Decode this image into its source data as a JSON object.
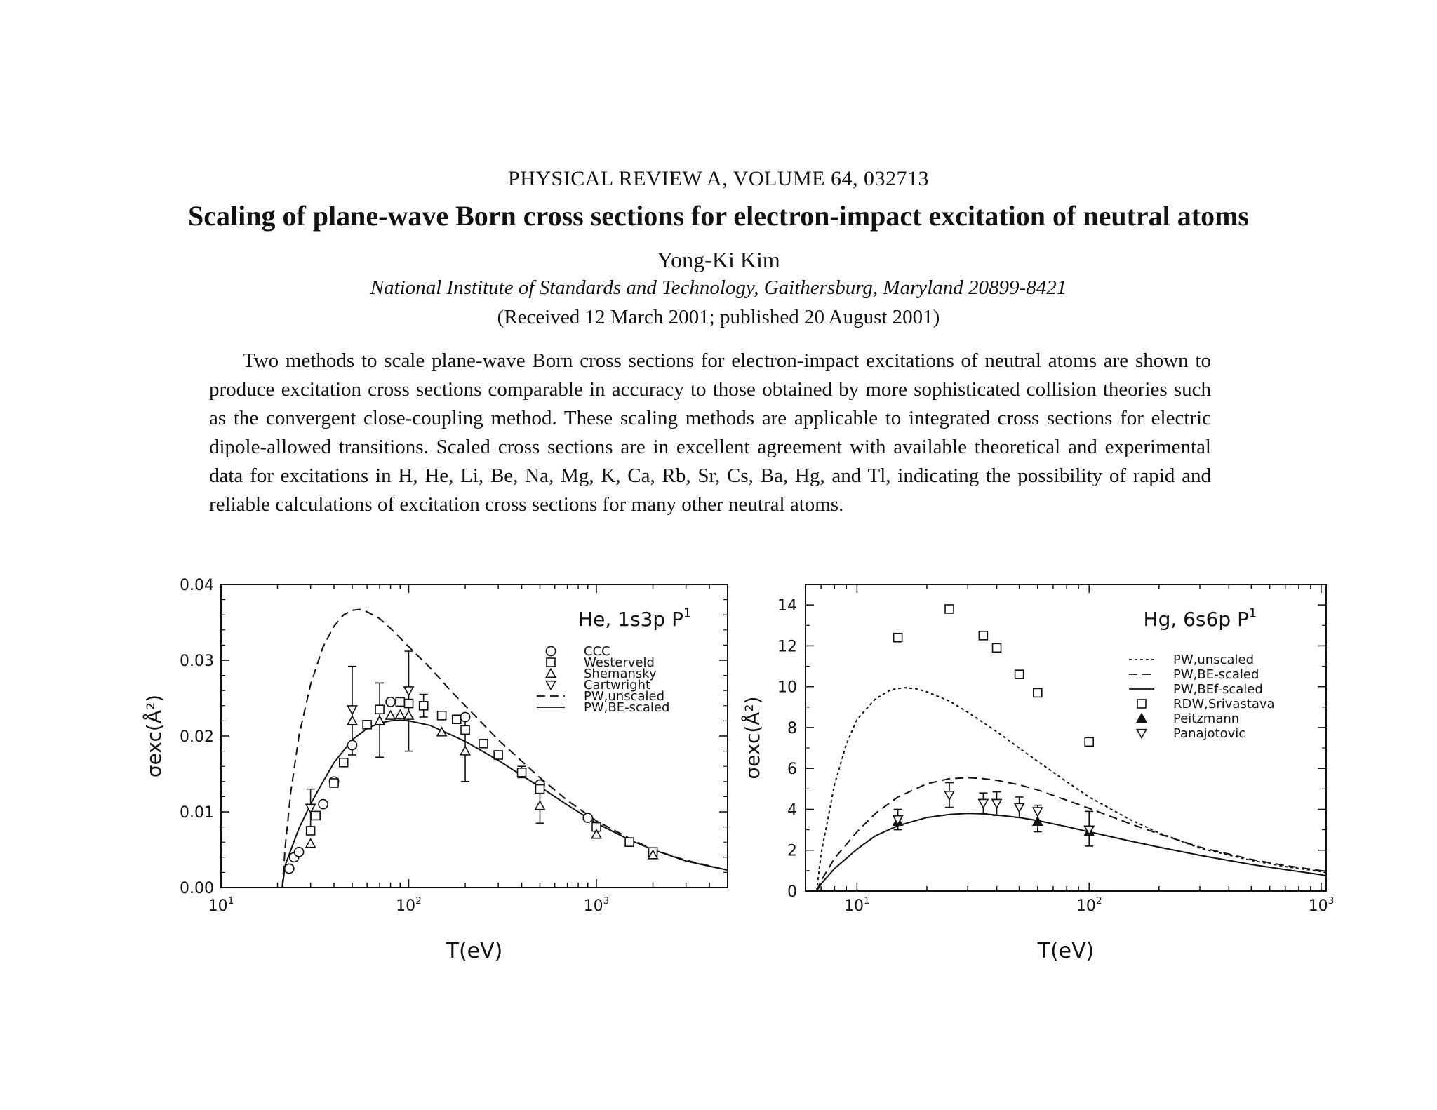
{
  "header": {
    "journal": "PHYSICAL REVIEW A, VOLUME 64, 032713",
    "title": "Scaling of plane-wave Born cross sections for electron-impact excitation of neutral atoms",
    "author": "Yong-Ki Kim",
    "affiliation": "National Institute of Standards and Technology, Gaithersburg, Maryland 20899-8421",
    "received": "(Received 12 March 2001; published 20 August 2001)"
  },
  "abstract": "Two methods to scale plane-wave Born cross sections for electron-impact excitations of neutral atoms are shown to produce excitation cross sections comparable in accuracy to those obtained by more sophisticated collision theories such as the convergent close-coupling method. These scaling methods are applicable to integrated cross sections for electric dipole-allowed transitions. Scaled cross sections are in excellent agreement with available theoretical and experimental data for excitations in H, He, Li, Be, Na, Mg, K, Ca, Rb, Sr, Cs, Ba, Hg, and Tl, indicating the possibility of rapid and reliable calculations of excitation cross sections for many other neutral atoms.",
  "chart_data": [
    {
      "type": "line",
      "annotation": "He, 1s3p ¹P",
      "xlabel": "T(eV)",
      "ylabel": "σexc(Å²)",
      "xscale": "log",
      "xlim": [
        10,
        5000
      ],
      "ylim": [
        0,
        0.04
      ],
      "xticks": [
        {
          "v": 10,
          "label": "10¹"
        },
        {
          "v": 100,
          "label": "10²"
        },
        {
          "v": 1000,
          "label": "10³"
        }
      ],
      "yticks": [
        "0.00",
        "0.01",
        "0.02",
        "0.03",
        "0.04"
      ],
      "legend_position": "upper-right",
      "series": [
        {
          "name": "CCC",
          "kind": "points",
          "marker": "circle",
          "points": [
            [
              23.1,
              0.0025
            ],
            [
              24.5,
              0.004
            ],
            [
              26,
              0.0047
            ],
            [
              35,
              0.011
            ],
            [
              40,
              0.014
            ],
            [
              50,
              0.0188
            ],
            [
              80,
              0.0245
            ],
            [
              200,
              0.0225
            ],
            [
              500,
              0.0136
            ],
            [
              900,
              0.0092
            ]
          ]
        },
        {
          "name": "Westerveld",
          "kind": "points",
          "marker": "square",
          "points": [
            [
              30,
              0.0075
            ],
            [
              32,
              0.0095
            ],
            [
              40,
              0.0138
            ],
            [
              45,
              0.0165
            ],
            [
              60,
              0.0215
            ],
            [
              70,
              0.0235
            ],
            [
              90,
              0.0245
            ],
            [
              100,
              0.0243
            ],
            [
              120,
              0.024
            ],
            [
              150,
              0.0227
            ],
            [
              180,
              0.0222
            ],
            [
              200,
              0.0208
            ],
            [
              250,
              0.019
            ],
            [
              300,
              0.0175
            ],
            [
              400,
              0.0152
            ],
            [
              500,
              0.013
            ],
            [
              1000,
              0.008
            ],
            [
              1500,
              0.006
            ],
            [
              2000,
              0.0047
            ]
          ]
        },
        {
          "name": "Shemansky",
          "kind": "points",
          "marker": "triangle-up",
          "points": [
            [
              30,
              0.0058
            ],
            [
              50,
              0.022
            ],
            [
              70,
              0.022
            ],
            [
              80,
              0.0227
            ],
            [
              90,
              0.0228
            ],
            [
              100,
              0.0227
            ],
            [
              150,
              0.0205
            ],
            [
              200,
              0.018
            ],
            [
              500,
              0.0108
            ],
            [
              1000,
              0.007
            ],
            [
              2000,
              0.0043
            ]
          ]
        },
        {
          "name": "Cartwright",
          "kind": "points",
          "marker": "triangle-down",
          "points": [
            [
              30,
              0.0105
            ],
            [
              50,
              0.0235
            ],
            [
              100,
              0.026
            ]
          ]
        },
        {
          "name": "PW,unscaled",
          "kind": "line",
          "dash": "dashed",
          "points": [
            [
              21.2,
              0.0
            ],
            [
              22,
              0.0055
            ],
            [
              23.5,
              0.0125
            ],
            [
              26,
              0.02
            ],
            [
              30,
              0.0268
            ],
            [
              35,
              0.0318
            ],
            [
              40,
              0.0345
            ],
            [
              45,
              0.036
            ],
            [
              50,
              0.0366
            ],
            [
              55,
              0.0367
            ],
            [
              60,
              0.0364
            ],
            [
              70,
              0.0355
            ],
            [
              80,
              0.0342
            ],
            [
              100,
              0.0318
            ],
            [
              130,
              0.029
            ],
            [
              170,
              0.0258
            ],
            [
              200,
              0.024
            ],
            [
              300,
              0.0195
            ],
            [
              500,
              0.0145
            ],
            [
              700,
              0.0115
            ],
            [
              1000,
              0.0088
            ],
            [
              1500,
              0.0065
            ],
            [
              2000,
              0.005
            ],
            [
              3000,
              0.0036
            ],
            [
              5000,
              0.0023
            ]
          ]
        },
        {
          "name": "PW,BE-scaled",
          "kind": "line",
          "dash": "solid",
          "points": [
            [
              21.2,
              0.0
            ],
            [
              22,
              0.003
            ],
            [
              24,
              0.0055
            ],
            [
              26,
              0.0078
            ],
            [
              30,
              0.011
            ],
            [
              35,
              0.014
            ],
            [
              40,
              0.0165
            ],
            [
              50,
              0.0195
            ],
            [
              60,
              0.021
            ],
            [
              70,
              0.0217
            ],
            [
              80,
              0.022
            ],
            [
              90,
              0.0221
            ],
            [
              100,
              0.022
            ],
            [
              130,
              0.0214
            ],
            [
              170,
              0.0201
            ],
            [
              200,
              0.0193
            ],
            [
              300,
              0.0168
            ],
            [
              400,
              0.0148
            ],
            [
              500,
              0.0133
            ],
            [
              700,
              0.0109
            ],
            [
              1000,
              0.0085
            ],
            [
              1500,
              0.0063
            ],
            [
              2000,
              0.005
            ],
            [
              3000,
              0.0035
            ],
            [
              5000,
              0.0023
            ]
          ]
        }
      ],
      "error_bars": [
        {
          "x": 30,
          "y": 0.0105,
          "lo": 0.008,
          "hi": 0.013
        },
        {
          "x": 50,
          "y": 0.0235,
          "lo": 0.0175,
          "hi": 0.0292
        },
        {
          "x": 70,
          "y": 0.022,
          "lo": 0.0172,
          "hi": 0.027
        },
        {
          "x": 100,
          "y": 0.025,
          "lo": 0.018,
          "hi": 0.0312
        },
        {
          "x": 120,
          "y": 0.024,
          "lo": 0.0225,
          "hi": 0.0255
        },
        {
          "x": 200,
          "y": 0.018,
          "lo": 0.014,
          "hi": 0.022
        },
        {
          "x": 400,
          "y": 0.0152,
          "lo": 0.0145,
          "hi": 0.016
        },
        {
          "x": 500,
          "y": 0.011,
          "lo": 0.0085,
          "hi": 0.0135
        }
      ]
    },
    {
      "type": "line",
      "annotation": "Hg, 6s6p ¹P",
      "xlabel": "T(eV)",
      "ylabel": "σexc(Å²)",
      "xscale": "log",
      "xlim": [
        6,
        1050
      ],
      "ylim": [
        0,
        15
      ],
      "xticks": [
        {
          "v": 10,
          "label": "10¹"
        },
        {
          "v": 100,
          "label": "10²"
        },
        {
          "v": 1000,
          "label": "10³"
        }
      ],
      "yticks": [
        "0",
        "2",
        "4",
        "6",
        "8",
        "10",
        "12",
        "14"
      ],
      "legend_position": "upper-right",
      "series": [
        {
          "name": "PW,unscaled",
          "kind": "line",
          "dash": "dotted",
          "points": [
            [
              6.7,
              0.0
            ],
            [
              7,
              1.8
            ],
            [
              8,
              5.2
            ],
            [
              9,
              7.2
            ],
            [
              10,
              8.4
            ],
            [
              12,
              9.4
            ],
            [
              14,
              9.85
            ],
            [
              16,
              9.95
            ],
            [
              18,
              9.9
            ],
            [
              20,
              9.75
            ],
            [
              25,
              9.3
            ],
            [
              30,
              8.75
            ],
            [
              40,
              7.8
            ],
            [
              50,
              7.0
            ],
            [
              60,
              6.35
            ],
            [
              80,
              5.35
            ],
            [
              100,
              4.6
            ],
            [
              150,
              3.5
            ],
            [
              200,
              2.85
            ],
            [
              300,
              2.1
            ],
            [
              500,
              1.5
            ],
            [
              700,
              1.2
            ],
            [
              1000,
              0.95
            ],
            [
              1050,
              0.9
            ]
          ]
        },
        {
          "name": "PW,BE-scaled",
          "kind": "line",
          "dash": "dashed",
          "points": [
            [
              6.7,
              0.0
            ],
            [
              7,
              0.5
            ],
            [
              8,
              1.6
            ],
            [
              10,
              2.9
            ],
            [
              12,
              3.8
            ],
            [
              15,
              4.6
            ],
            [
              20,
              5.25
            ],
            [
              25,
              5.5
            ],
            [
              30,
              5.55
            ],
            [
              35,
              5.5
            ],
            [
              40,
              5.42
            ],
            [
              50,
              5.2
            ],
            [
              60,
              4.95
            ],
            [
              80,
              4.45
            ],
            [
              100,
              4.05
            ],
            [
              150,
              3.3
            ],
            [
              200,
              2.8
            ],
            [
              300,
              2.15
            ],
            [
              500,
              1.55
            ],
            [
              700,
              1.25
            ],
            [
              1000,
              1.0
            ],
            [
              1050,
              0.95
            ]
          ]
        },
        {
          "name": "PW,BEf-scaled",
          "kind": "line",
          "dash": "solid",
          "points": [
            [
              6.7,
              0.0
            ],
            [
              7,
              0.35
            ],
            [
              8,
              1.1
            ],
            [
              10,
              2.05
            ],
            [
              12,
              2.7
            ],
            [
              15,
              3.2
            ],
            [
              20,
              3.6
            ],
            [
              25,
              3.75
            ],
            [
              30,
              3.8
            ],
            [
              35,
              3.78
            ],
            [
              40,
              3.72
            ],
            [
              50,
              3.6
            ],
            [
              60,
              3.45
            ],
            [
              80,
              3.15
            ],
            [
              100,
              2.9
            ],
            [
              150,
              2.45
            ],
            [
              200,
              2.15
            ],
            [
              300,
              1.75
            ],
            [
              500,
              1.3
            ],
            [
              700,
              1.05
            ],
            [
              1000,
              0.8
            ],
            [
              1050,
              0.75
            ]
          ]
        },
        {
          "name": "RDW,Srivastava",
          "kind": "points",
          "marker": "square",
          "points": [
            [
              15,
              12.4
            ],
            [
              25,
              13.8
            ],
            [
              35,
              12.5
            ],
            [
              40,
              11.9
            ],
            [
              50,
              10.6
            ],
            [
              60,
              9.7
            ],
            [
              100,
              7.3
            ]
          ]
        },
        {
          "name": "Peitzmann",
          "kind": "points",
          "marker": "filled-triangle-up",
          "points": [
            [
              15,
              3.4
            ],
            [
              60,
              3.4
            ],
            [
              100,
              2.9
            ]
          ]
        },
        {
          "name": "Panajotovic",
          "kind": "points",
          "marker": "triangle-down",
          "points": [
            [
              15,
              3.5
            ],
            [
              25,
              4.7
            ],
            [
              35,
              4.3
            ],
            [
              40,
              4.3
            ],
            [
              50,
              4.1
            ],
            [
              60,
              3.9
            ],
            [
              100,
              3.0
            ]
          ]
        }
      ],
      "error_bars": [
        {
          "x": 15,
          "y": 3.45,
          "lo": 3.0,
          "hi": 4.0
        },
        {
          "x": 25,
          "y": 4.7,
          "lo": 4.1,
          "hi": 5.3
        },
        {
          "x": 35,
          "y": 4.3,
          "lo": 3.8,
          "hi": 4.8
        },
        {
          "x": 40,
          "y": 4.3,
          "lo": 3.7,
          "hi": 4.85
        },
        {
          "x": 50,
          "y": 4.1,
          "lo": 3.6,
          "hi": 4.6
        },
        {
          "x": 60,
          "y": 3.6,
          "lo": 2.9,
          "hi": 4.2
        },
        {
          "x": 100,
          "y": 3.0,
          "lo": 2.2,
          "hi": 3.9
        }
      ]
    }
  ]
}
